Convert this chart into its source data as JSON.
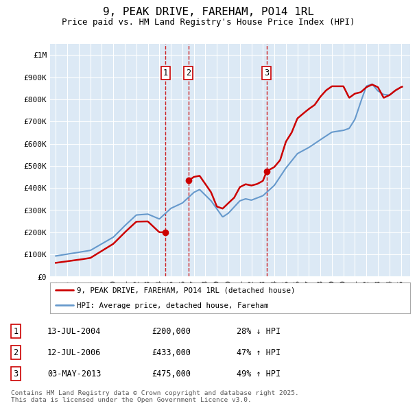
{
  "title": "9, PEAK DRIVE, FAREHAM, PO14 1RL",
  "subtitle": "Price paid vs. HM Land Registry's House Price Index (HPI)",
  "legend_entry1": "9, PEAK DRIVE, FAREHAM, PO14 1RL (detached house)",
  "legend_entry2": "HPI: Average price, detached house, Fareham",
  "footer": "Contains HM Land Registry data © Crown copyright and database right 2025.\nThis data is licensed under the Open Government Licence v3.0.",
  "transactions": [
    {
      "num": 1,
      "date": "13-JUL-2004",
      "price": 200000,
      "pct": "28%",
      "dir": "↓",
      "x_year": 2004.53
    },
    {
      "num": 2,
      "date": "12-JUL-2006",
      "price": 433000,
      "pct": "47%",
      "dir": "↑",
      "x_year": 2006.53
    },
    {
      "num": 3,
      "date": "03-MAY-2013",
      "price": 475000,
      "pct": "49%",
      "dir": "↑",
      "x_year": 2013.33
    }
  ],
  "hpi_color": "#6699cc",
  "price_color": "#cc0000",
  "plot_bg": "#dce9f5",
  "grid_color": "#ffffff",
  "ylim": [
    0,
    1050000
  ],
  "xlim": [
    1994.5,
    2025.8
  ],
  "yticks": [
    0,
    100000,
    200000,
    300000,
    400000,
    500000,
    600000,
    700000,
    800000,
    900000,
    1000000
  ],
  "ytick_labels": [
    "£0",
    "£100K",
    "£200K",
    "£300K",
    "£400K",
    "£500K",
    "£600K",
    "£700K",
    "£800K",
    "£900K",
    "£1M"
  ],
  "xticks": [
    1995,
    1996,
    1997,
    1998,
    1999,
    2000,
    2001,
    2002,
    2003,
    2004,
    2005,
    2006,
    2007,
    2008,
    2009,
    2010,
    2011,
    2012,
    2013,
    2014,
    2015,
    2016,
    2017,
    2018,
    2019,
    2020,
    2021,
    2022,
    2023,
    2024,
    2025
  ]
}
